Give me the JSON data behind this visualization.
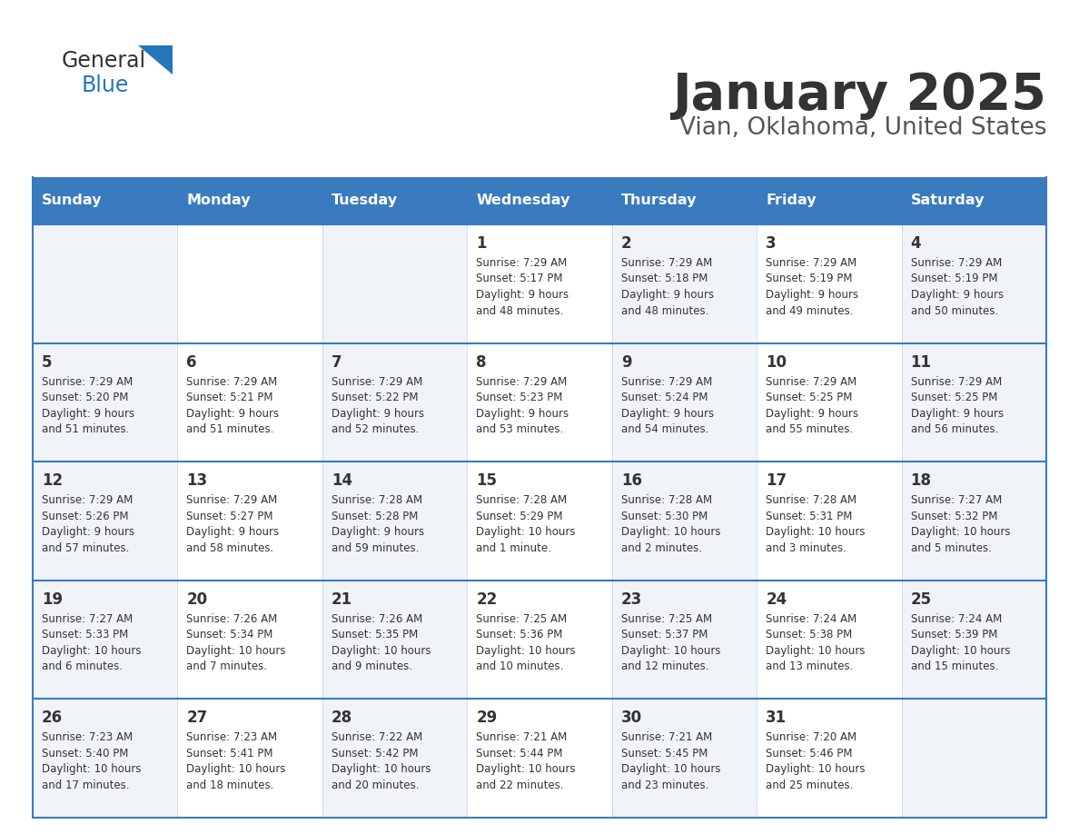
{
  "title": "January 2025",
  "subtitle": "Vian, Oklahoma, United States",
  "header_bg": "#3a7abf",
  "header_text_color": "#ffffff",
  "day_names": [
    "Sunday",
    "Monday",
    "Tuesday",
    "Wednesday",
    "Thursday",
    "Friday",
    "Saturday"
  ],
  "weeks": [
    [
      {
        "day": null,
        "info": null
      },
      {
        "day": null,
        "info": null
      },
      {
        "day": null,
        "info": null
      },
      {
        "day": 1,
        "info": "Sunrise: 7:29 AM\nSunset: 5:17 PM\nDaylight: 9 hours\nand 48 minutes."
      },
      {
        "day": 2,
        "info": "Sunrise: 7:29 AM\nSunset: 5:18 PM\nDaylight: 9 hours\nand 48 minutes."
      },
      {
        "day": 3,
        "info": "Sunrise: 7:29 AM\nSunset: 5:19 PM\nDaylight: 9 hours\nand 49 minutes."
      },
      {
        "day": 4,
        "info": "Sunrise: 7:29 AM\nSunset: 5:19 PM\nDaylight: 9 hours\nand 50 minutes."
      }
    ],
    [
      {
        "day": 5,
        "info": "Sunrise: 7:29 AM\nSunset: 5:20 PM\nDaylight: 9 hours\nand 51 minutes."
      },
      {
        "day": 6,
        "info": "Sunrise: 7:29 AM\nSunset: 5:21 PM\nDaylight: 9 hours\nand 51 minutes."
      },
      {
        "day": 7,
        "info": "Sunrise: 7:29 AM\nSunset: 5:22 PM\nDaylight: 9 hours\nand 52 minutes."
      },
      {
        "day": 8,
        "info": "Sunrise: 7:29 AM\nSunset: 5:23 PM\nDaylight: 9 hours\nand 53 minutes."
      },
      {
        "day": 9,
        "info": "Sunrise: 7:29 AM\nSunset: 5:24 PM\nDaylight: 9 hours\nand 54 minutes."
      },
      {
        "day": 10,
        "info": "Sunrise: 7:29 AM\nSunset: 5:25 PM\nDaylight: 9 hours\nand 55 minutes."
      },
      {
        "day": 11,
        "info": "Sunrise: 7:29 AM\nSunset: 5:25 PM\nDaylight: 9 hours\nand 56 minutes."
      }
    ],
    [
      {
        "day": 12,
        "info": "Sunrise: 7:29 AM\nSunset: 5:26 PM\nDaylight: 9 hours\nand 57 minutes."
      },
      {
        "day": 13,
        "info": "Sunrise: 7:29 AM\nSunset: 5:27 PM\nDaylight: 9 hours\nand 58 minutes."
      },
      {
        "day": 14,
        "info": "Sunrise: 7:28 AM\nSunset: 5:28 PM\nDaylight: 9 hours\nand 59 minutes."
      },
      {
        "day": 15,
        "info": "Sunrise: 7:28 AM\nSunset: 5:29 PM\nDaylight: 10 hours\nand 1 minute."
      },
      {
        "day": 16,
        "info": "Sunrise: 7:28 AM\nSunset: 5:30 PM\nDaylight: 10 hours\nand 2 minutes."
      },
      {
        "day": 17,
        "info": "Sunrise: 7:28 AM\nSunset: 5:31 PM\nDaylight: 10 hours\nand 3 minutes."
      },
      {
        "day": 18,
        "info": "Sunrise: 7:27 AM\nSunset: 5:32 PM\nDaylight: 10 hours\nand 5 minutes."
      }
    ],
    [
      {
        "day": 19,
        "info": "Sunrise: 7:27 AM\nSunset: 5:33 PM\nDaylight: 10 hours\nand 6 minutes."
      },
      {
        "day": 20,
        "info": "Sunrise: 7:26 AM\nSunset: 5:34 PM\nDaylight: 10 hours\nand 7 minutes."
      },
      {
        "day": 21,
        "info": "Sunrise: 7:26 AM\nSunset: 5:35 PM\nDaylight: 10 hours\nand 9 minutes."
      },
      {
        "day": 22,
        "info": "Sunrise: 7:25 AM\nSunset: 5:36 PM\nDaylight: 10 hours\nand 10 minutes."
      },
      {
        "day": 23,
        "info": "Sunrise: 7:25 AM\nSunset: 5:37 PM\nDaylight: 10 hours\nand 12 minutes."
      },
      {
        "day": 24,
        "info": "Sunrise: 7:24 AM\nSunset: 5:38 PM\nDaylight: 10 hours\nand 13 minutes."
      },
      {
        "day": 25,
        "info": "Sunrise: 7:24 AM\nSunset: 5:39 PM\nDaylight: 10 hours\nand 15 minutes."
      }
    ],
    [
      {
        "day": 26,
        "info": "Sunrise: 7:23 AM\nSunset: 5:40 PM\nDaylight: 10 hours\nand 17 minutes."
      },
      {
        "day": 27,
        "info": "Sunrise: 7:23 AM\nSunset: 5:41 PM\nDaylight: 10 hours\nand 18 minutes."
      },
      {
        "day": 28,
        "info": "Sunrise: 7:22 AM\nSunset: 5:42 PM\nDaylight: 10 hours\nand 20 minutes."
      },
      {
        "day": 29,
        "info": "Sunrise: 7:21 AM\nSunset: 5:44 PM\nDaylight: 10 hours\nand 22 minutes."
      },
      {
        "day": 30,
        "info": "Sunrise: 7:21 AM\nSunset: 5:45 PM\nDaylight: 10 hours\nand 23 minutes."
      },
      {
        "day": 31,
        "info": "Sunrise: 7:20 AM\nSunset: 5:46 PM\nDaylight: 10 hours\nand 25 minutes."
      },
      {
        "day": null,
        "info": null
      }
    ]
  ],
  "cell_bg_light": "#f0f4f8",
  "cell_bg_white": "#ffffff",
  "cell_border_color": "#3a7abf",
  "day_num_color": "#333333",
  "info_text_color": "#333333",
  "title_color": "#333333",
  "subtitle_color": "#555555",
  "logo_general_color": "#333333",
  "logo_blue_color": "#2575bb",
  "bg_color": "#ffffff"
}
